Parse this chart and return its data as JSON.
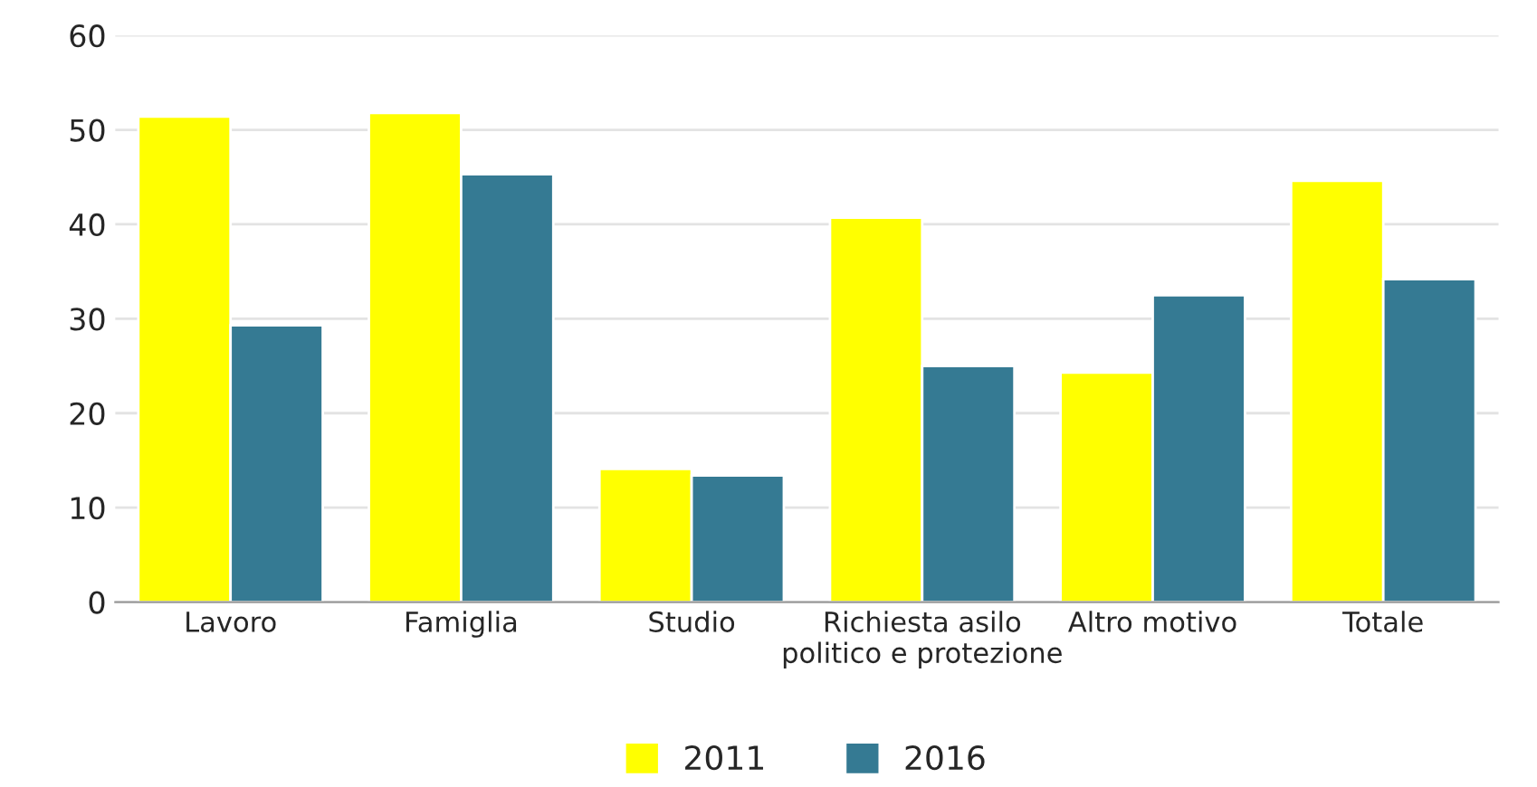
{
  "chart_data": {
    "type": "bar",
    "categories": [
      "Lavoro",
      "Famiglia",
      "Studio",
      "Richiesta asilo\npolitico e protezione",
      "Altro motivo",
      "Totale"
    ],
    "series": [
      {
        "name": "2011",
        "color": "#ffff00",
        "values": [
          51.4,
          51.8,
          14.1,
          40.7,
          24.3,
          44.6
        ]
      },
      {
        "name": "2016",
        "color": "#357a93",
        "values": [
          29.3,
          45.3,
          13.4,
          25.0,
          32.5,
          34.2
        ]
      }
    ],
    "ylim": [
      0,
      60
    ],
    "yticks": [
      0,
      10,
      20,
      30,
      40,
      50,
      60
    ],
    "grid": "y",
    "legend": "bottom"
  }
}
